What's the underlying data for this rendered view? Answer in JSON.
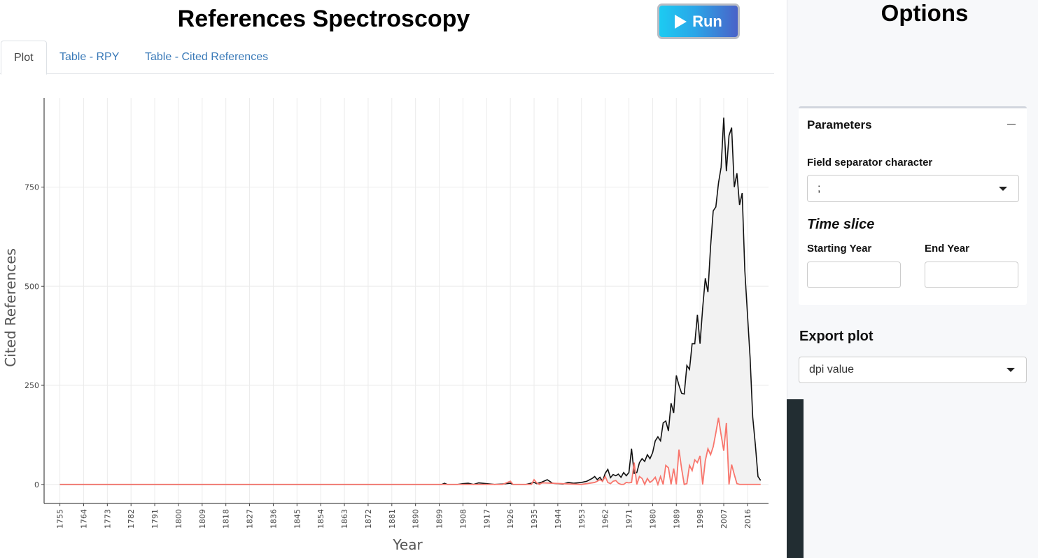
{
  "header": {
    "title": "References Spectroscopy",
    "run_label": "Run"
  },
  "tabs": [
    {
      "label": "Plot",
      "active": true
    },
    {
      "label": "Table - RPY",
      "active": false
    },
    {
      "label": "Table - Cited References",
      "active": false
    }
  ],
  "sidebar": {
    "title": "Options",
    "parameters": {
      "header": "Parameters",
      "field_separator_label": "Field separator character",
      "field_separator_value": ";",
      "time_slice_label": "Time slice",
      "starting_year_label": "Starting Year",
      "starting_year_value": "",
      "end_year_label": "End Year",
      "end_year_value": ""
    },
    "export": {
      "title": "Export plot",
      "dpi_value": "dpi value"
    }
  },
  "colors": {
    "run_gradient_start": "#1ccbf2",
    "run_gradient_end": "#4a62c8",
    "total_line": "#111111",
    "deviation_line": "#f8766d",
    "area_fill": "#f2f2f2",
    "tab_link": "#3a7ab8"
  },
  "chart_data": {
    "type": "line",
    "xlabel": "Year",
    "ylabel": "Cited References",
    "xlim": [
      1749,
      2024
    ],
    "ylim": [
      -48,
      975
    ],
    "x_ticks": [
      1755,
      1764,
      1773,
      1782,
      1791,
      1800,
      1809,
      1818,
      1827,
      1836,
      1845,
      1854,
      1863,
      1872,
      1881,
      1890,
      1899,
      1908,
      1917,
      1926,
      1935,
      1944,
      1953,
      1962,
      1971,
      1980,
      1989,
      1998,
      2007,
      2016
    ],
    "y_ticks": [
      0,
      250,
      500,
      750
    ],
    "grid": true,
    "series": [
      {
        "x": [
          1755,
          1900,
          1901,
          1902,
          1906,
          1908,
          1910,
          1912,
          1914,
          1917,
          1920,
          1923,
          1926,
          1927,
          1932,
          1935,
          1936,
          1938,
          1940,
          1942,
          1944,
          1946,
          1948,
          1950,
          1953,
          1955,
          1957,
          1958,
          1959,
          1960,
          1961,
          1962,
          1963,
          1964,
          1965,
          1966,
          1967,
          1968,
          1969,
          1970,
          1971,
          1972,
          1973,
          1974,
          1975,
          1976,
          1977,
          1978,
          1979,
          1980,
          1981,
          1982,
          1983,
          1984,
          1985,
          1986,
          1987,
          1988,
          1989,
          1990,
          1991,
          1992,
          1993,
          1994,
          1995,
          1996,
          1997,
          1998,
          1999,
          2000,
          2001,
          2002,
          2003,
          2004,
          2005,
          2006,
          2007,
          2008,
          2009,
          2010,
          2011,
          2012,
          2013,
          2014,
          2015,
          2016,
          2017,
          2018,
          2019,
          2020,
          2021
        ],
        "values": [
          0,
          0,
          3,
          0,
          0,
          2,
          3,
          0,
          4,
          2,
          0,
          1,
          3,
          0,
          0,
          5,
          2,
          6,
          12,
          3,
          2,
          1,
          5,
          3,
          5,
          8,
          15,
          20,
          12,
          18,
          8,
          28,
          38,
          17,
          25,
          22,
          26,
          18,
          30,
          22,
          30,
          90,
          28,
          30,
          55,
          65,
          58,
          75,
          65,
          80,
          110,
          120,
          110,
          155,
          160,
          135,
          205,
          180,
          275,
          250,
          230,
          228,
          300,
          290,
          355,
          355,
          428,
          355,
          445,
          520,
          485,
          600,
          690,
          700,
          760,
          800,
          925,
          790,
          880,
          900,
          750,
          785,
          705,
          735,
          540,
          430,
          320,
          170,
          100,
          20,
          10
        ]
      },
      {
        "x": [
          1755,
          1923,
          1926,
          1927,
          1932,
          1934,
          1935,
          1936,
          1937,
          1938,
          1953,
          1958,
          1959,
          1960,
          1961,
          1962,
          1963,
          1964,
          1965,
          1966,
          1967,
          1968,
          1969,
          1970,
          1971,
          1972,
          1973,
          1974,
          1975,
          1976,
          1977,
          1978,
          1979,
          1980,
          1981,
          1982,
          1983,
          1984,
          1985,
          1986,
          1987,
          1988,
          1989,
          1990,
          1991,
          1992,
          1993,
          1994,
          1995,
          1996,
          1997,
          1998,
          1999,
          2000,
          2001,
          2002,
          2003,
          2004,
          2005,
          2006,
          2007,
          2008,
          2009,
          2010,
          2011,
          2012,
          2013,
          2014,
          2015,
          2016,
          2017,
          2018,
          2019,
          2020,
          2021
        ],
        "values": [
          0,
          0,
          8,
          0,
          0,
          0,
          12,
          4,
          0,
          4,
          0,
          5,
          8,
          12,
          8,
          20,
          5,
          2,
          8,
          10,
          3,
          0,
          0,
          5,
          4,
          5,
          55,
          0,
          20,
          15,
          0,
          15,
          5,
          10,
          18,
          0,
          20,
          0,
          48,
          42,
          0,
          40,
          0,
          88,
          40,
          0,
          2,
          48,
          35,
          62,
          55,
          72,
          0,
          60,
          90,
          75,
          95,
          130,
          168,
          125,
          85,
          155,
          0,
          50,
          25,
          2,
          0,
          0,
          0,
          0,
          0,
          0,
          0,
          0,
          0
        ]
      }
    ]
  }
}
